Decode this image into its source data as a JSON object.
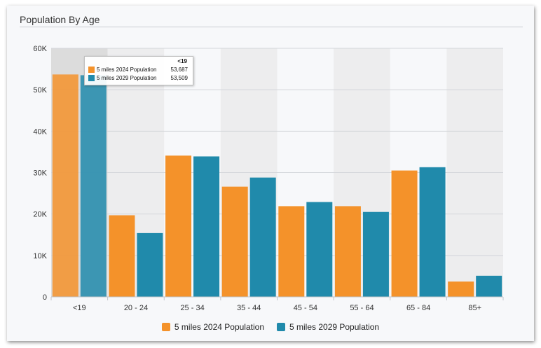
{
  "title": "Population By Age",
  "chart_data": {
    "type": "bar",
    "title": "Population By Age",
    "categories": [
      "<19",
      "20 - 24",
      "25 - 34",
      "35 - 44",
      "45 - 54",
      "55 - 64",
      "65 - 84",
      "85+"
    ],
    "series": [
      {
        "name": "5 miles 2024 Population",
        "color": "#f4922a",
        "values": [
          53687,
          19700,
          34100,
          26600,
          21900,
          21900,
          30500,
          3700
        ]
      },
      {
        "name": "5 miles 2029 Population",
        "color": "#208aab",
        "values": [
          53509,
          15400,
          33900,
          28800,
          22900,
          20500,
          31300,
          5100
        ]
      }
    ],
    "ylim": [
      0,
      60000
    ],
    "yticks": [
      0,
      10000,
      20000,
      30000,
      40000,
      50000,
      60000
    ],
    "ytick_labels": [
      "0",
      "10K",
      "20K",
      "30K",
      "40K",
      "50K",
      "60K"
    ],
    "grid": true,
    "legend": "bottom-center",
    "highlighted_category": "<19"
  },
  "tooltip": {
    "header": "<19",
    "rows": [
      {
        "name": "5 miles 2024 Population",
        "value": "53,687",
        "color": "#f4922a"
      },
      {
        "name": "5 miles 2029 Population",
        "value": "53,509",
        "color": "#208aab"
      }
    ]
  }
}
